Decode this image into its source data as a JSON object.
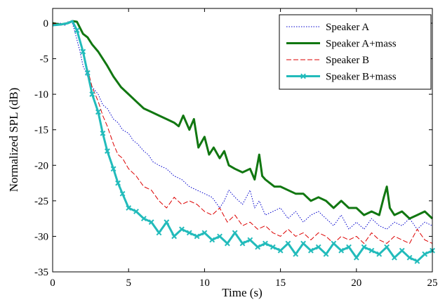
{
  "chart_data": {
    "type": "line",
    "xlabel": "Time (s)",
    "ylabel": "Normalized SPL (dB)",
    "xlim": [
      0,
      25
    ],
    "ylim": [
      -35,
      1
    ],
    "x_ticks": [
      0,
      5,
      10,
      15,
      20,
      25
    ],
    "y_ticks": [
      0,
      -5,
      -10,
      -15,
      -20,
      -25,
      -30,
      -35
    ],
    "grid": false,
    "legend_position": "top-right",
    "series": [
      {
        "name": "Speaker A",
        "color": "#0000cc",
        "style": "dotted",
        "x": [
          0,
          0.5,
          0.8,
          1.0,
          1.3,
          1.5,
          1.8,
          2.0,
          2.3,
          2.6,
          3.0,
          3.3,
          3.6,
          4.0,
          4.3,
          4.6,
          5.0,
          5.3,
          5.6,
          6.0,
          6.3,
          6.6,
          7.0,
          7.5,
          8.0,
          8.5,
          9.0,
          9.5,
          10.0,
          10.5,
          11.0,
          11.3,
          11.6,
          12.0,
          12.5,
          13.0,
          13.3,
          13.6,
          14.0,
          14.5,
          15.0,
          15.5,
          16.0,
          16.5,
          17.0,
          17.5,
          18.0,
          18.5,
          19.0,
          19.5,
          20.0,
          20.5,
          21.0,
          21.5,
          22.0,
          22.5,
          23.0,
          23.5,
          24.0,
          24.5,
          25.0
        ],
        "y": [
          0,
          0,
          -0.3,
          0.2,
          0,
          -1.5,
          -4,
          -6,
          -7.5,
          -9,
          -10,
          -11.5,
          -12,
          -13.5,
          -14,
          -15,
          -15.5,
          -16.5,
          -17,
          -18,
          -18.5,
          -19.5,
          -20,
          -20.5,
          -21.5,
          -22,
          -23,
          -23.5,
          -24,
          -24.5,
          -26,
          -25,
          -23.5,
          -24.5,
          -25.5,
          -23.5,
          -26,
          -25,
          -27,
          -26.5,
          -26,
          -27.5,
          -26.5,
          -28,
          -27,
          -26.5,
          -27.5,
          -28.5,
          -27,
          -29,
          -28,
          -29,
          -27.5,
          -28.5,
          -29,
          -28,
          -28.5,
          -27.5,
          -29,
          -28,
          -28.5
        ]
      },
      {
        "name": "Speaker A+mass",
        "color": "#117711",
        "style": "solid-thick",
        "x": [
          0,
          0.5,
          1.0,
          1.3,
          1.6,
          2.0,
          2.3,
          2.6,
          3.0,
          3.3,
          3.6,
          4.0,
          4.5,
          5.0,
          5.5,
          6.0,
          6.5,
          7.0,
          7.5,
          8.0,
          8.3,
          8.6,
          9.0,
          9.3,
          9.6,
          10.0,
          10.3,
          10.6,
          11.0,
          11.3,
          11.6,
          12.0,
          12.5,
          13.0,
          13.3,
          13.6,
          13.8,
          14.0,
          14.3,
          14.6,
          15.0,
          15.5,
          16.0,
          16.5,
          17.0,
          17.5,
          18.0,
          18.5,
          19.0,
          19.5,
          20.0,
          20.5,
          21.0,
          21.5,
          21.8,
          22.0,
          22.2,
          22.5,
          23.0,
          23.5,
          24.0,
          24.5,
          25.0
        ],
        "y": [
          0,
          -0.2,
          0,
          0.3,
          0.2,
          -1.5,
          -2,
          -3,
          -4,
          -5,
          -6,
          -7.5,
          -9,
          -10,
          -11,
          -12,
          -12.5,
          -13,
          -13.5,
          -14,
          -14.5,
          -13,
          -15,
          -13.5,
          -17.5,
          -16,
          -18.5,
          -17.5,
          -19,
          -18,
          -20,
          -20.5,
          -21,
          -20.5,
          -22,
          -18.5,
          -21.5,
          -22,
          -22.5,
          -23,
          -23,
          -23.5,
          -24,
          -24,
          -25,
          -24.5,
          -25,
          -26,
          -25,
          -26,
          -26,
          -27,
          -26.5,
          -27,
          -24.5,
          -23,
          -26,
          -27,
          -26.5,
          -27.5,
          -27,
          -26.5,
          -27.5
        ]
      },
      {
        "name": "Speaker B",
        "color": "#dd0000",
        "style": "dashed",
        "x": [
          0,
          0.5,
          1.0,
          1.3,
          1.6,
          2.0,
          2.3,
          2.6,
          3.0,
          3.3,
          3.6,
          4.0,
          4.3,
          4.6,
          5.0,
          5.5,
          6.0,
          6.5,
          7.0,
          7.5,
          8.0,
          8.5,
          9.0,
          9.5,
          10.0,
          10.5,
          11.0,
          11.5,
          12.0,
          12.5,
          13.0,
          13.5,
          14.0,
          14.5,
          15.0,
          15.5,
          16.0,
          16.5,
          17.0,
          17.5,
          18.0,
          18.5,
          19.0,
          19.5,
          20.0,
          20.5,
          21.0,
          21.5,
          22.0,
          22.5,
          23.0,
          23.5,
          24.0,
          24.5,
          25.0
        ],
        "y": [
          0,
          -0.3,
          0,
          0.2,
          -1,
          -4,
          -6.5,
          -9,
          -11,
          -13,
          -14.5,
          -17,
          -18.5,
          -19,
          -20.5,
          -21.5,
          -23,
          -23.5,
          -25,
          -26,
          -24.5,
          -25.5,
          -25,
          -25.5,
          -26.5,
          -27,
          -26,
          -28,
          -27,
          -28.5,
          -28,
          -29,
          -28.5,
          -29.5,
          -30,
          -29,
          -30,
          -29.5,
          -30.5,
          -29.5,
          -30,
          -31,
          -30,
          -30.5,
          -30,
          -31,
          -29.5,
          -30.5,
          -31,
          -30,
          -30.5,
          -31,
          -29,
          -30.5,
          -31
        ]
      },
      {
        "name": "Speaker B+mass",
        "color": "#22bbbb",
        "style": "solid-marker-x",
        "x": [
          0,
          0.5,
          1.0,
          1.3,
          1.6,
          2.0,
          2.3,
          2.6,
          3.0,
          3.3,
          3.6,
          4.0,
          4.3,
          4.6,
          5.0,
          5.5,
          6.0,
          6.5,
          7.0,
          7.5,
          8.0,
          8.5,
          9.0,
          9.5,
          10.0,
          10.5,
          11.0,
          11.5,
          12.0,
          12.5,
          13.0,
          13.5,
          14.0,
          14.5,
          15.0,
          15.5,
          16.0,
          16.5,
          17.0,
          17.5,
          18.0,
          18.5,
          19.0,
          19.5,
          20.0,
          20.5,
          21.0,
          21.5,
          22.0,
          22.5,
          23.0,
          23.5,
          24.0,
          24.5,
          25.0
        ],
        "y": [
          -0.3,
          -0.2,
          0,
          0.3,
          -1,
          -4,
          -7,
          -10,
          -12.5,
          -15.5,
          -18,
          -20.5,
          -22.5,
          -24,
          -26,
          -26.5,
          -27.5,
          -28,
          -29.5,
          -28,
          -30,
          -29,
          -29.5,
          -30,
          -29.5,
          -30.5,
          -30,
          -31,
          -29.5,
          -31,
          -30.5,
          -31.5,
          -31,
          -31.5,
          -32,
          -31,
          -32.5,
          -31,
          -32,
          -31.5,
          -32.5,
          -31,
          -32,
          -31.5,
          -33,
          -31.5,
          -32,
          -32.5,
          -31.5,
          -33,
          -32,
          -33,
          -33.5,
          -32.5,
          -32
        ]
      }
    ]
  }
}
